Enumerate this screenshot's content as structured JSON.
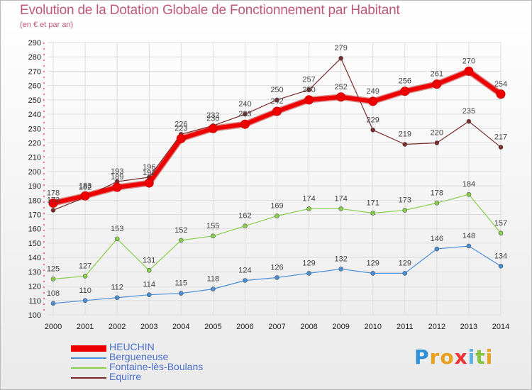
{
  "title": "Evolution de la Dotation Globale de Fonctionnement par Habitant",
  "subtitle": "(en € et par an)",
  "brand": "Proxiti",
  "chart_data": {
    "type": "line",
    "title": "Evolution de la Dotation Globale de Fonctionnement par Habitant",
    "subtitle": "(en € et par an)",
    "xlabel": "",
    "ylabel": "",
    "x": [
      "2000",
      "2001",
      "2002",
      "2003",
      "2004",
      "2005",
      "2006",
      "2007",
      "2008",
      "2009",
      "2010",
      "2011",
      "2012",
      "2013",
      "2014"
    ],
    "y_ticks": [
      "100",
      "110",
      "120",
      "130",
      "140",
      "150",
      "160",
      "170",
      "180",
      "190",
      "200",
      "210",
      "220",
      "230",
      "240",
      "250",
      "260",
      "270",
      "280",
      "290"
    ],
    "ylim": [
      100,
      290
    ],
    "grid": true,
    "legend": "bottom-left",
    "series": [
      {
        "name": "HEUCHIN",
        "color": "#ee0000",
        "values": [
          178,
          183,
          189,
          192,
          223,
          230,
          233,
          242,
          250,
          252,
          249,
          256,
          261,
          270,
          254
        ],
        "labels": [
          "178",
          "183",
          "189",
          "192",
          "223",
          "230",
          "233",
          "242",
          "250",
          "252",
          "249",
          "256",
          "261",
          "270",
          "254"
        ]
      },
      {
        "name": "Bergueneuse",
        "color": "#4a90d9",
        "values": [
          108,
          110,
          112,
          114,
          115,
          118,
          124,
          126,
          129,
          132,
          129,
          129,
          146,
          148,
          134
        ],
        "labels": [
          "108",
          "110",
          "112",
          "114",
          "115",
          "118",
          "124",
          "126",
          "129",
          "132",
          "129",
          "129",
          "146",
          "148",
          "134"
        ]
      },
      {
        "name": "Fontaine-lès-Boulans",
        "color": "#88d04b",
        "values": [
          125,
          127,
          153,
          131,
          152,
          155,
          162,
          169,
          174,
          174,
          171,
          173,
          178,
          184,
          157
        ],
        "labels": [
          "125",
          "127",
          "153",
          "131",
          "152",
          "155",
          "162",
          "169",
          "174",
          "174",
          "171",
          "173",
          "178",
          "184",
          "157"
        ]
      },
      {
        "name": "Equirre",
        "color": "#7a2a2a",
        "values": [
          173,
          182,
          193,
          196,
          226,
          232,
          240,
          250,
          257,
          279,
          229,
          219,
          220,
          235,
          217
        ],
        "labels": [
          "173",
          "182",
          "193",
          "196",
          "226",
          "232",
          "240",
          "250",
          "257",
          "279",
          "229",
          "219",
          "220",
          "235",
          "217"
        ]
      }
    ]
  }
}
